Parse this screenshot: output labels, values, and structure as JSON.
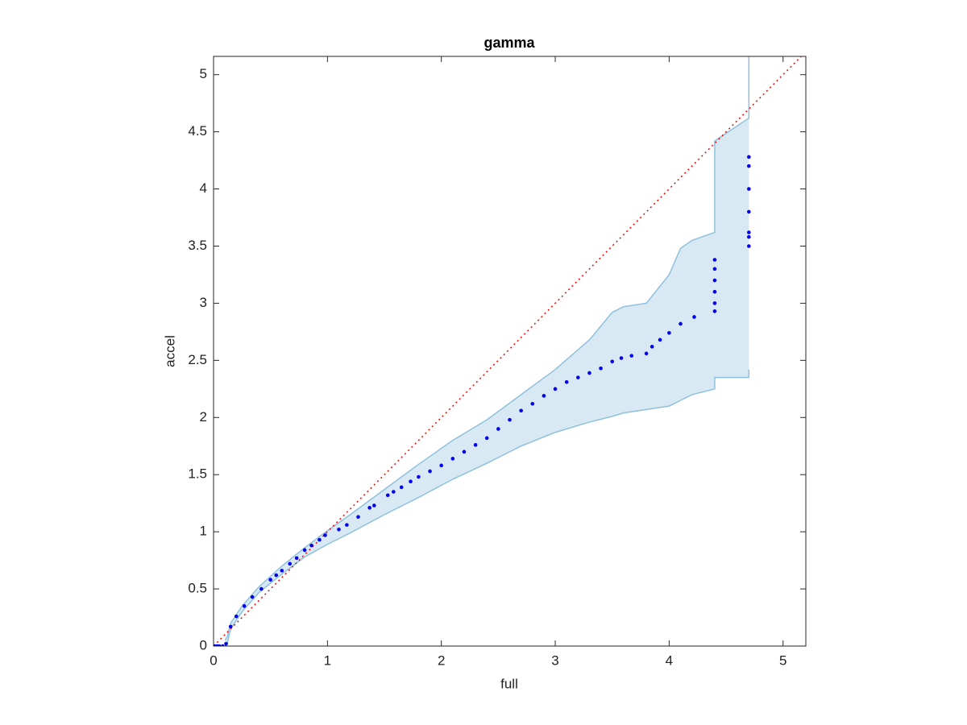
{
  "chart_data": {
    "type": "scatter",
    "title": "gamma",
    "x_label": "full",
    "y_label": "accel",
    "xlim": [
      0,
      5.2
    ],
    "ylim": [
      0,
      5.16
    ],
    "xticks": [
      0,
      1,
      2,
      3,
      4,
      5
    ],
    "yticks": [
      0,
      0.5,
      1,
      1.5,
      2,
      2.5,
      3,
      3.5,
      4,
      4.5,
      5
    ],
    "points": {
      "color": "#0000ee",
      "x": [
        0.01,
        0.03,
        0.05,
        0.08,
        0.11,
        0.15,
        0.2,
        0.27,
        0.34,
        0.42,
        0.5,
        0.55,
        0.6,
        0.67,
        0.73,
        0.8,
        0.86,
        0.93,
        0.98,
        1.1,
        1.17,
        1.27,
        1.37,
        1.41,
        1.53,
        1.58,
        1.65,
        1.73,
        1.8,
        1.9,
        2.0,
        2.1,
        2.2,
        2.3,
        2.4,
        2.5,
        2.6,
        2.7,
        2.8,
        2.9,
        3.0,
        3.1,
        3.2,
        3.3,
        3.4,
        3.5,
        3.58,
        3.67,
        3.8,
        3.85,
        3.92,
        4.0,
        4.1,
        4.22,
        4.4,
        4.4,
        4.4,
        4.4,
        4.4,
        4.4,
        4.7,
        4.7,
        4.7,
        4.7,
        4.7,
        4.7,
        4.7
      ],
      "y": [
        0,
        0,
        0,
        0,
        0.02,
        0.17,
        0.26,
        0.35,
        0.43,
        0.5,
        0.58,
        0.62,
        0.66,
        0.72,
        0.77,
        0.84,
        0.88,
        0.93,
        0.97,
        1.02,
        1.06,
        1.13,
        1.21,
        1.23,
        1.32,
        1.35,
        1.39,
        1.44,
        1.48,
        1.53,
        1.58,
        1.64,
        1.7,
        1.76,
        1.82,
        1.9,
        1.98,
        2.06,
        2.12,
        2.19,
        2.25,
        2.31,
        2.35,
        2.39,
        2.43,
        2.49,
        2.52,
        2.54,
        2.56,
        2.62,
        2.68,
        2.74,
        2.82,
        2.88,
        2.93,
        3.0,
        3.1,
        3.2,
        3.3,
        3.38,
        3.5,
        3.58,
        3.62,
        3.8,
        4.0,
        4.2,
        4.28
      ]
    },
    "band": {
      "color": "#8fc1dd",
      "x": [
        0.1,
        0.12,
        0.15,
        0.25,
        0.4,
        0.6,
        0.8,
        1.0,
        1.2,
        1.5,
        1.8,
        2.1,
        2.4,
        2.7,
        3.0,
        3.3,
        3.5,
        3.6,
        3.8,
        4.0,
        4.1,
        4.2,
        4.4,
        4.4,
        4.7,
        4.7
      ],
      "upper": [
        0.05,
        0.08,
        0.2,
        0.35,
        0.52,
        0.7,
        0.86,
        1.01,
        1.15,
        1.37,
        1.59,
        1.8,
        1.98,
        2.2,
        2.42,
        2.68,
        2.92,
        2.97,
        3.0,
        3.25,
        3.48,
        3.55,
        3.62,
        4.42,
        4.62,
        5.16
      ],
      "lower": [
        0,
        0.02,
        0.15,
        0.3,
        0.47,
        0.63,
        0.78,
        0.89,
        0.99,
        1.15,
        1.3,
        1.46,
        1.6,
        1.75,
        1.87,
        1.96,
        2.01,
        2.04,
        2.07,
        2.1,
        2.15,
        2.2,
        2.25,
        2.35,
        2.35,
        2.42
      ]
    },
    "reference_line": {
      "color": "#ff0000",
      "x": [
        0,
        5.2
      ],
      "y": [
        0,
        5.2
      ]
    }
  }
}
